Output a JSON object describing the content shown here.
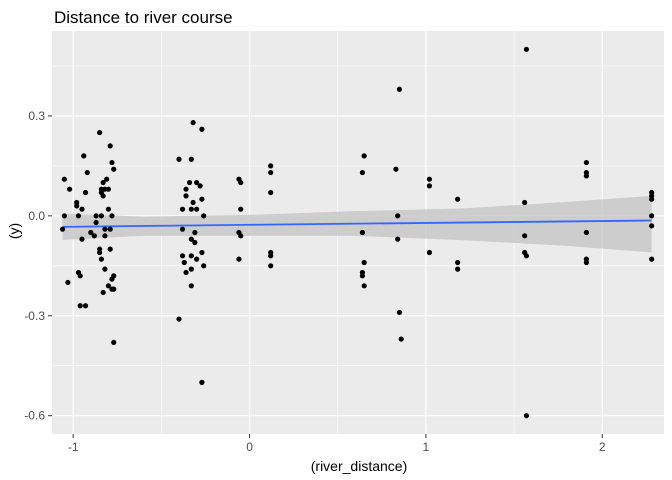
{
  "chart_data": {
    "type": "scatter",
    "title": "Distance to river course",
    "xlabel": "(river_distance)",
    "ylabel": "(y)",
    "xlim": [
      -1.12,
      2.35
    ],
    "ylim": [
      -0.655,
      0.555
    ],
    "xticks": [
      -1,
      0,
      1,
      2
    ],
    "xtick_labels": [
      "-1",
      "0",
      "1",
      "2"
    ],
    "yticks": [
      -0.6,
      -0.3,
      0.0,
      0.3
    ],
    "ytick_labels": [
      "-0.6",
      "-0.3",
      "0.0",
      "0.3"
    ],
    "grid": true,
    "legend": "none",
    "colors": {
      "panel": "#ebebeb",
      "grid": "#ffffff",
      "points": "#000000",
      "trend": "#3366ff",
      "ribbon": "#c8c8c8"
    },
    "points": [
      {
        "x": -1.05,
        "y": 0.11
      },
      {
        "x": -1.05,
        "y": 0.0
      },
      {
        "x": -1.06,
        "y": -0.04
      },
      {
        "x": -1.03,
        "y": -0.2
      },
      {
        "x": -1.02,
        "y": 0.08
      },
      {
        "x": -0.98,
        "y": 0.04
      },
      {
        "x": -0.98,
        "y": 0.03
      },
      {
        "x": -0.97,
        "y": 0.0
      },
      {
        "x": -0.96,
        "y": -0.27
      },
      {
        "x": -0.97,
        "y": -0.17
      },
      {
        "x": -0.96,
        "y": -0.18
      },
      {
        "x": -0.95,
        "y": 0.02
      },
      {
        "x": -0.94,
        "y": 0.18
      },
      {
        "x": -0.93,
        "y": -0.27
      },
      {
        "x": -0.93,
        "y": 0.07
      },
      {
        "x": -0.95,
        "y": -0.07
      },
      {
        "x": -0.92,
        "y": 0.13
      },
      {
        "x": -0.9,
        "y": -0.05
      },
      {
        "x": -0.88,
        "y": -0.06
      },
      {
        "x": -0.87,
        "y": -0.02
      },
      {
        "x": -0.87,
        "y": 0.0
      },
      {
        "x": -0.85,
        "y": -0.1
      },
      {
        "x": -0.85,
        "y": 0.25
      },
      {
        "x": -0.85,
        "y": -0.11
      },
      {
        "x": -0.84,
        "y": 0.08
      },
      {
        "x": -0.84,
        "y": 0.07
      },
      {
        "x": -0.84,
        "y": 0.0
      },
      {
        "x": -0.84,
        "y": -0.13
      },
      {
        "x": -0.83,
        "y": 0.06
      },
      {
        "x": -0.83,
        "y": 0.1
      },
      {
        "x": -0.82,
        "y": 0.08
      },
      {
        "x": -0.82,
        "y": -0.04
      },
      {
        "x": -0.82,
        "y": -0.06
      },
      {
        "x": -0.83,
        "y": -0.23
      },
      {
        "x": -0.82,
        "y": -0.16
      },
      {
        "x": -0.81,
        "y": 0.11
      },
      {
        "x": -0.8,
        "y": 0.08
      },
      {
        "x": -0.8,
        "y": 0.02
      },
      {
        "x": -0.8,
        "y": -0.21
      },
      {
        "x": -0.79,
        "y": 0.21
      },
      {
        "x": -0.79,
        "y": -0.04
      },
      {
        "x": -0.79,
        "y": -0.1
      },
      {
        "x": -0.78,
        "y": 0.16
      },
      {
        "x": -0.78,
        "y": 0.0
      },
      {
        "x": -0.78,
        "y": -0.19
      },
      {
        "x": -0.78,
        "y": -0.22
      },
      {
        "x": -0.77,
        "y": 0.14
      },
      {
        "x": -0.77,
        "y": -0.38
      },
      {
        "x": -0.77,
        "y": -0.22
      },
      {
        "x": -0.77,
        "y": -0.18
      },
      {
        "x": -0.4,
        "y": 0.17
      },
      {
        "x": -0.4,
        "y": -0.31
      },
      {
        "x": -0.38,
        "y": 0.02
      },
      {
        "x": -0.38,
        "y": -0.04
      },
      {
        "x": -0.38,
        "y": -0.12
      },
      {
        "x": -0.37,
        "y": -0.14
      },
      {
        "x": -0.36,
        "y": 0.08
      },
      {
        "x": -0.36,
        "y": 0.06
      },
      {
        "x": -0.36,
        "y": -0.17
      },
      {
        "x": -0.34,
        "y": 0.1
      },
      {
        "x": -0.33,
        "y": 0.17
      },
      {
        "x": -0.33,
        "y": 0.02
      },
      {
        "x": -0.33,
        "y": -0.07
      },
      {
        "x": -0.33,
        "y": -0.12
      },
      {
        "x": -0.33,
        "y": -0.16
      },
      {
        "x": -0.33,
        "y": -0.21
      },
      {
        "x": -0.32,
        "y": 0.28
      },
      {
        "x": -0.32,
        "y": 0.04
      },
      {
        "x": -0.31,
        "y": -0.05
      },
      {
        "x": -0.31,
        "y": -0.08
      },
      {
        "x": -0.3,
        "y": 0.1
      },
      {
        "x": -0.3,
        "y": 0.02
      },
      {
        "x": -0.3,
        "y": -0.13
      },
      {
        "x": -0.28,
        "y": 0.09
      },
      {
        "x": -0.27,
        "y": 0.26
      },
      {
        "x": -0.27,
        "y": -0.5
      },
      {
        "x": -0.27,
        "y": 0.05
      },
      {
        "x": -0.27,
        "y": -0.11
      },
      {
        "x": -0.26,
        "y": 0.0
      },
      {
        "x": -0.26,
        "y": -0.15
      },
      {
        "x": -0.06,
        "y": 0.11
      },
      {
        "x": -0.06,
        "y": -0.05
      },
      {
        "x": -0.06,
        "y": -0.13
      },
      {
        "x": -0.05,
        "y": 0.1
      },
      {
        "x": -0.05,
        "y": 0.02
      },
      {
        "x": -0.05,
        "y": -0.06
      },
      {
        "x": 0.12,
        "y": 0.15
      },
      {
        "x": 0.12,
        "y": 0.13
      },
      {
        "x": 0.12,
        "y": 0.07
      },
      {
        "x": 0.12,
        "y": -0.11
      },
      {
        "x": 0.12,
        "y": -0.12
      },
      {
        "x": 0.12,
        "y": -0.15
      },
      {
        "x": 0.64,
        "y": 0.13
      },
      {
        "x": 0.64,
        "y": -0.17
      },
      {
        "x": 0.64,
        "y": -0.18
      },
      {
        "x": 0.64,
        "y": -0.05
      },
      {
        "x": 0.65,
        "y": 0.18
      },
      {
        "x": 0.65,
        "y": -0.14
      },
      {
        "x": 0.65,
        "y": -0.21
      },
      {
        "x": 0.83,
        "y": 0.14
      },
      {
        "x": 0.84,
        "y": 0.0
      },
      {
        "x": 0.84,
        "y": -0.07
      },
      {
        "x": 0.85,
        "y": 0.38
      },
      {
        "x": 0.85,
        "y": -0.29
      },
      {
        "x": 0.86,
        "y": -0.37
      },
      {
        "x": 1.02,
        "y": 0.11
      },
      {
        "x": 1.02,
        "y": 0.09
      },
      {
        "x": 1.02,
        "y": -0.11
      },
      {
        "x": 1.18,
        "y": 0.05
      },
      {
        "x": 1.18,
        "y": -0.14
      },
      {
        "x": 1.18,
        "y": -0.16
      },
      {
        "x": 1.56,
        "y": 0.04
      },
      {
        "x": 1.56,
        "y": -0.06
      },
      {
        "x": 1.56,
        "y": -0.11
      },
      {
        "x": 1.57,
        "y": 0.5
      },
      {
        "x": 1.57,
        "y": -0.12
      },
      {
        "x": 1.57,
        "y": -0.6
      },
      {
        "x": 1.91,
        "y": 0.16
      },
      {
        "x": 1.91,
        "y": 0.13
      },
      {
        "x": 1.91,
        "y": 0.12
      },
      {
        "x": 1.91,
        "y": -0.05
      },
      {
        "x": 1.91,
        "y": -0.13
      },
      {
        "x": 1.91,
        "y": -0.14
      },
      {
        "x": 2.28,
        "y": 0.07
      },
      {
        "x": 2.28,
        "y": 0.05
      },
      {
        "x": 2.28,
        "y": 0.06
      },
      {
        "x": 2.28,
        "y": 0.0
      },
      {
        "x": 2.28,
        "y": -0.03
      },
      {
        "x": 2.28,
        "y": -0.13
      }
    ],
    "trend_line": {
      "x": [
        -1.06,
        2.28
      ],
      "y": [
        -0.033,
        -0.014
      ]
    },
    "confidence_band": {
      "x": [
        -1.06,
        -0.6,
        0.0,
        0.6,
        1.2,
        1.8,
        2.28
      ],
      "lower": [
        -0.072,
        -0.06,
        -0.06,
        -0.06,
        -0.073,
        -0.09,
        -0.11
      ],
      "upper": [
        0.006,
        -0.002,
        0.003,
        0.014,
        0.022,
        0.042,
        0.06
      ]
    }
  }
}
